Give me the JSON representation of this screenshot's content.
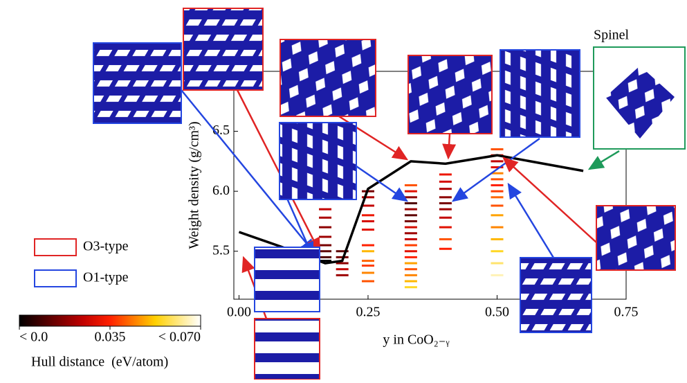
{
  "chart_data": {
    "type": "scatter",
    "x_label": "y in CoO₂₋ᵧ",
    "y_label": "Weight density (g/cm³)",
    "xlim": [
      -0.01,
      0.75
    ],
    "ylim": [
      5.1,
      7.0
    ],
    "xticks": [
      {
        "value": 0,
        "label": "0.00"
      },
      0.25,
      {
        "value": 0.5,
        "label": "0.50"
      },
      0.75
    ],
    "yticks": [
      5.5,
      {
        "value": 6,
        "label": "6.0"
      },
      6.5
    ],
    "line": {
      "color": "#000000",
      "x": [
        0,
        0.1,
        0.167,
        0.2,
        0.25,
        0.333,
        0.4,
        0.5,
        0.667
      ],
      "values": [
        5.66,
        5.51,
        5.4,
        5.42,
        6.02,
        6.25,
        6.23,
        6.3,
        6.17
      ]
    },
    "series": [
      {
        "x": 0.167,
        "values": [
          5.42,
          5.45,
          5.5,
          5.55,
          5.62,
          5.7,
          5.78,
          5.85
        ],
        "hull": [
          0.0,
          0.01,
          0.012,
          0.015,
          0.02,
          0.018,
          0.022,
          0.025
        ]
      },
      {
        "x": 0.2,
        "values": [
          5.3,
          5.35,
          5.4,
          5.45,
          5.5
        ],
        "hull": [
          0.02,
          0.025,
          0.018,
          0.015,
          0.012
        ]
      },
      {
        "x": 0.25,
        "values": [
          5.25,
          5.32,
          5.38,
          5.42,
          5.5,
          5.55,
          5.68,
          5.75,
          5.8,
          5.88,
          5.95,
          6.0
        ],
        "hull": [
          0.04,
          0.045,
          0.038,
          0.042,
          0.05,
          0.035,
          0.03,
          0.028,
          0.032,
          0.025,
          0.022,
          0.015
        ]
      },
      {
        "x": 0.333,
        "values": [
          5.2,
          5.25,
          5.3,
          5.35,
          5.4,
          5.45,
          5.5,
          5.55,
          5.6,
          5.65,
          5.7,
          5.75,
          5.8,
          5.85,
          5.9,
          5.95,
          6.0,
          6.05
        ],
        "hull": [
          0.055,
          0.05,
          0.045,
          0.04,
          0.048,
          0.035,
          0.03,
          0.038,
          0.025,
          0.02,
          0.028,
          0.015,
          0.012,
          0.02,
          0.01,
          0.018,
          0.03,
          0.04
        ]
      },
      {
        "x": 0.4,
        "values": [
          5.52,
          5.6,
          5.7,
          5.78,
          5.85,
          5.9,
          5.95,
          6.02,
          6.08,
          6.14
        ],
        "hull": [
          0.035,
          0.04,
          0.03,
          0.025,
          0.02,
          0.015,
          0.018,
          0.022,
          0.028,
          0.032
        ]
      },
      {
        "x": 0.5,
        "values": [
          5.3,
          5.4,
          5.5,
          5.6,
          5.7,
          5.8,
          5.88,
          5.95,
          6.0,
          6.05,
          6.1,
          6.15,
          6.2,
          6.25,
          6.3,
          6.35
        ],
        "hull": [
          0.065,
          0.06,
          0.055,
          0.05,
          0.045,
          0.048,
          0.04,
          0.042,
          0.038,
          0.035,
          0.04,
          0.045,
          0.03,
          0.025,
          0.03,
          0.04
        ]
      }
    ],
    "colorbar": {
      "title": "Hull distance  (eV/atom)",
      "lim": [
        0,
        0.07
      ],
      "ticks": [
        {
          "value": 0,
          "label": "< 0.0"
        },
        0.035,
        {
          "value": 0.07,
          "label": "< 0.070"
        }
      ]
    },
    "legend": [
      {
        "name": "O3-type",
        "color": "#e02424"
      },
      {
        "name": "O1-type",
        "color": "#2446e0"
      }
    ],
    "annotation": "Spinel"
  }
}
